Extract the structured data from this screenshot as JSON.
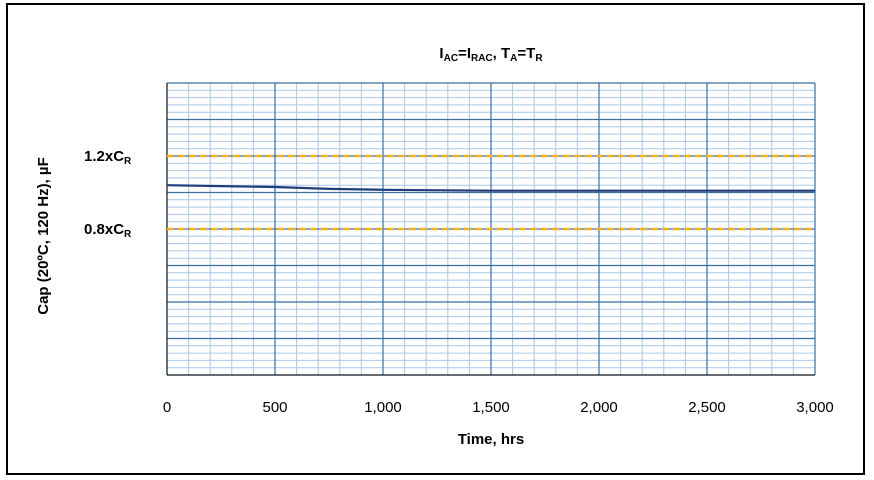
{
  "chart_data": {
    "type": "line",
    "title": "I_AC=I_RAC, T_A=T_R",
    "title_parts": {
      "i1": "I",
      "s1": "AC",
      "eq1": "=",
      "i2": "I",
      "s2": "RAC",
      "sep": ", ",
      "t1": "T",
      "s3": "A",
      "eq2": "=",
      "t2": "T",
      "s4": "R"
    },
    "xlabel": "Time, hrs",
    "ylabel": "Cap (20ºC, 120 Hz), µF",
    "xlim": [
      0,
      3000
    ],
    "ylim": [
      0,
      1.6
    ],
    "x_ticks": [
      0,
      500,
      1000,
      1500,
      2000,
      2500,
      3000
    ],
    "x_tick_labels": [
      "0",
      "500",
      "1,000",
      "1,500",
      "2,000",
      "2,500",
      "3,000"
    ],
    "grid": true,
    "series": [
      {
        "color": "#1f3d7a",
        "x": [
          0,
          250,
          500,
          750,
          1000,
          1500,
          2000,
          2500,
          3000
        ],
        "y": [
          1.04,
          1.035,
          1.03,
          1.02,
          1.015,
          1.01,
          1.01,
          1.01,
          1.01
        ]
      }
    ],
    "reference_lines": [
      {
        "label_main": "1.2xC",
        "label_sub": "R",
        "y": 1.2,
        "color": "#f0b323",
        "style": "dashed"
      },
      {
        "label_main": "0.8xC",
        "label_sub": "R",
        "y": 0.8,
        "color": "#f0b323",
        "style": "dashed"
      }
    ]
  },
  "colors": {
    "major_grid": "#3a6ea5",
    "minor_grid": "#a9c7e8",
    "axis": "#000000"
  }
}
